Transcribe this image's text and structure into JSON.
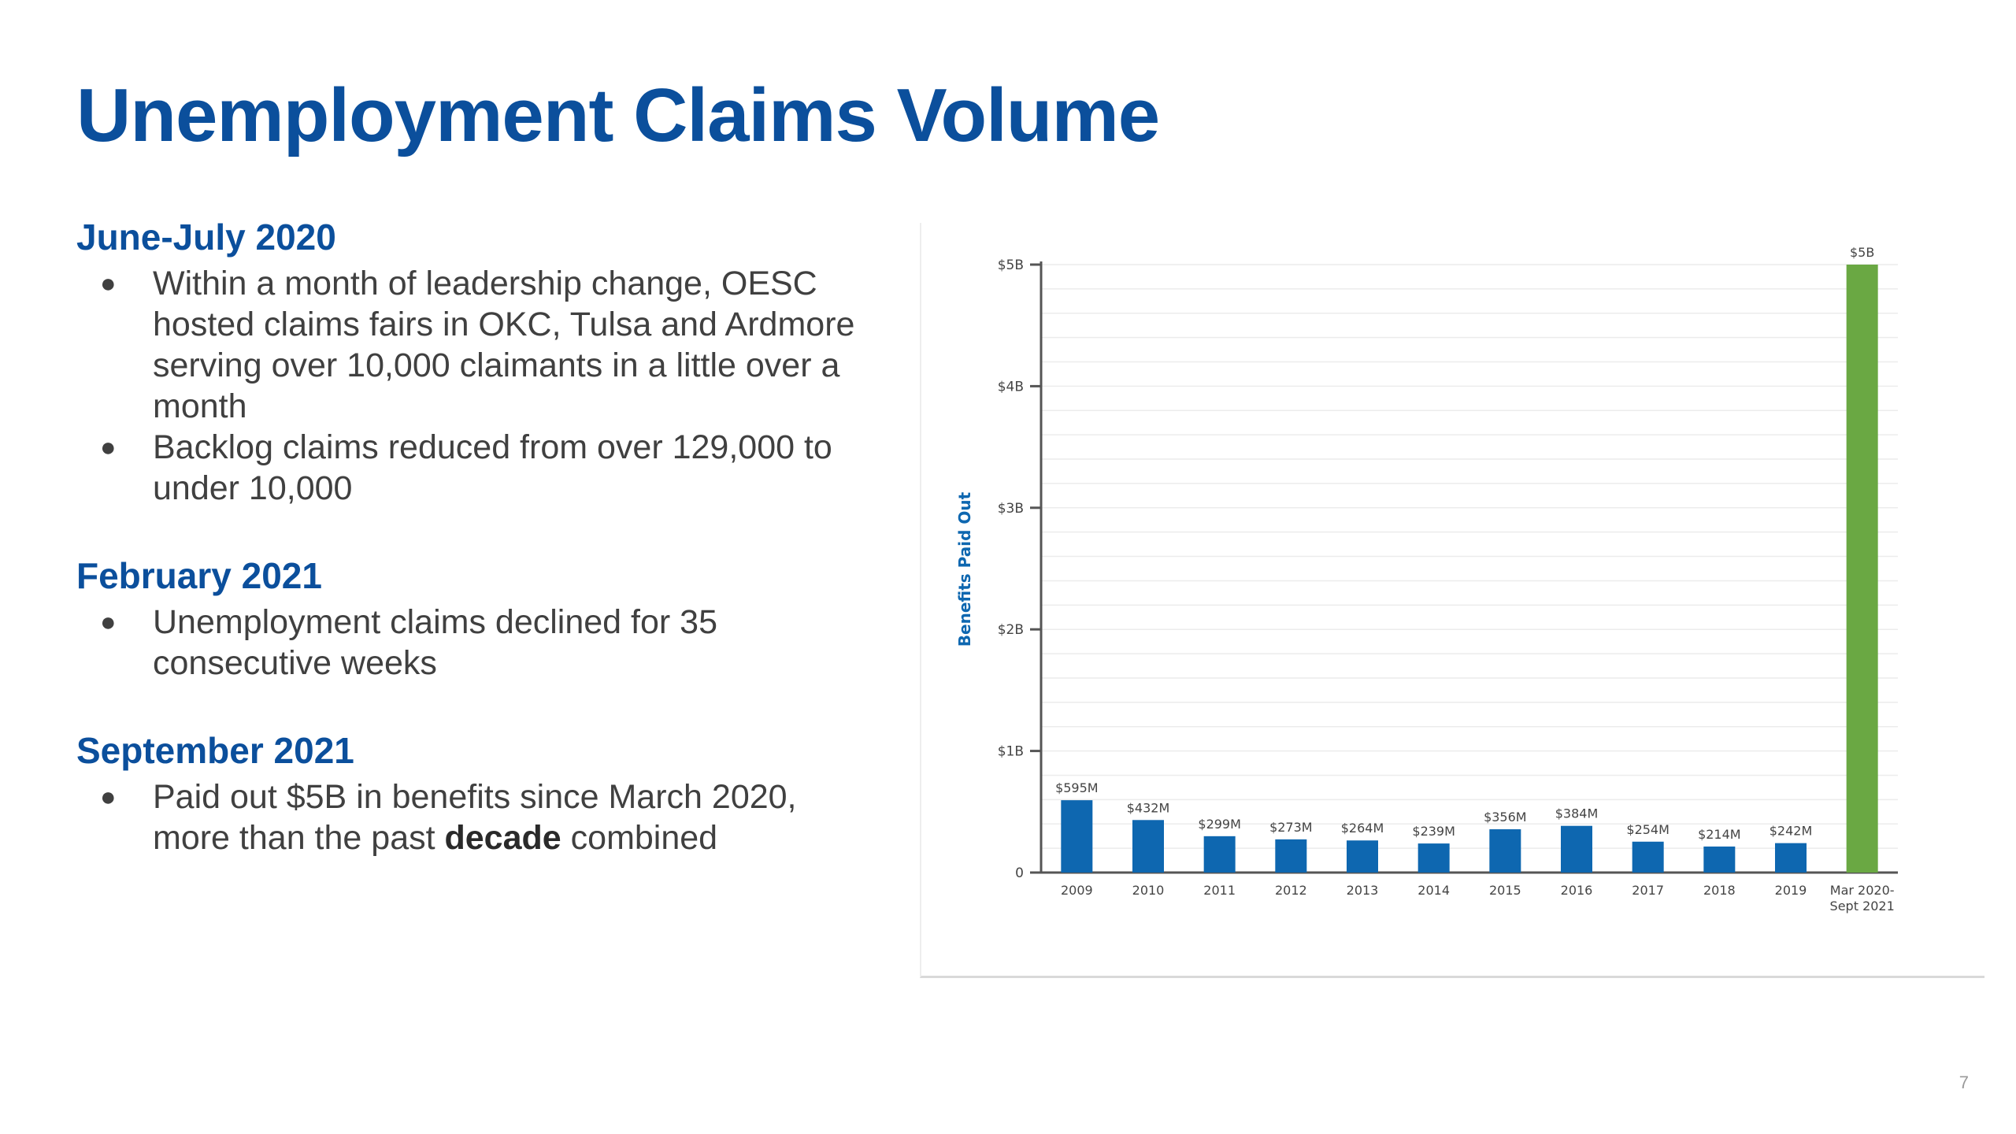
{
  "slide": {
    "title": "Unemployment Claims Volume",
    "page_number": "7"
  },
  "sections": [
    {
      "heading": "June-July 2020",
      "bullets": [
        [
          "Within a month of leadership change, OESC hosted claims fairs in OKC, Tulsa and Ardmore serving over 10,000 claimants in a little over a month"
        ],
        [
          "Backlog claims reduced from over 129,000 to under 10,000"
        ]
      ]
    },
    {
      "heading": "February 2021",
      "bullets": [
        [
          "Unemployment claims declined for 35 consecutive weeks"
        ]
      ]
    },
    {
      "heading": "September 2021",
      "bullets": [
        [
          "Paid out $5B in benefits since March 2020, more than the past ",
          "decade",
          " combined"
        ]
      ]
    }
  ],
  "chart_data": {
    "type": "bar",
    "title": "",
    "xlabel": "",
    "ylabel": "Benefits Paid Out",
    "ylim": [
      0,
      5000
    ],
    "y_unit": "$M",
    "y_ticks": [
      {
        "value": 0,
        "label": "0"
      },
      {
        "value": 1000,
        "label": "$1B"
      },
      {
        "value": 2000,
        "label": "$2B"
      },
      {
        "value": 3000,
        "label": "$3B"
      },
      {
        "value": 4000,
        "label": "$4B"
      },
      {
        "value": 5000,
        "label": "$5B"
      }
    ],
    "grid": true,
    "categories": [
      "2009",
      "2010",
      "2011",
      "2012",
      "2013",
      "2014",
      "2015",
      "2016",
      "2017",
      "2018",
      "2019",
      "Mar 2020-\nSept 2021"
    ],
    "values": [
      595,
      432,
      299,
      273,
      264,
      239,
      356,
      384,
      254,
      214,
      242,
      5000
    ],
    "data_labels": [
      "$595M",
      "$432M",
      "$299M",
      "$273M",
      "$264M",
      "$239M",
      "$356M",
      "$384M",
      "$254M",
      "$214M",
      "$242M",
      "$5B"
    ],
    "colors": [
      "#0e67b0",
      "#0e67b0",
      "#0e67b0",
      "#0e67b0",
      "#0e67b0",
      "#0e67b0",
      "#0e67b0",
      "#0e67b0",
      "#0e67b0",
      "#0e67b0",
      "#0e67b0",
      "#6aa843"
    ],
    "axis_label_color": "#0e67b0"
  }
}
